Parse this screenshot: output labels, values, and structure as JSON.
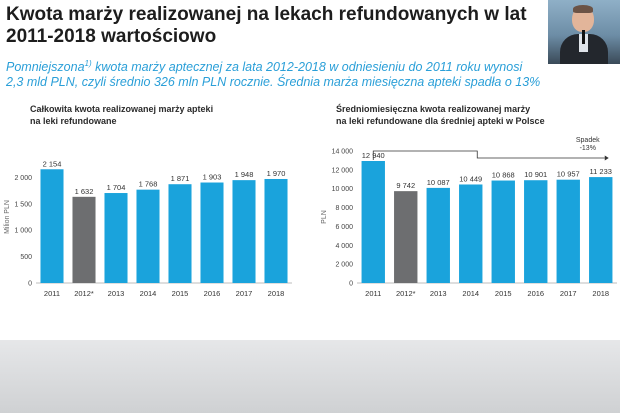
{
  "slide": {
    "title_line1": "Kwota marży realizowanej na lekach refundowanych w lat",
    "title_line2": "2011-2018 wartościowo",
    "subtitle_line1_a": "Pomniejszona",
    "subtitle_sup": "1)",
    "subtitle_line1_b": " kwota marży aptecznej za lata 2012-2018 w odniesieniu do 2011 roku wynosi",
    "subtitle_line2": "2,3 mld PLN, czyli średnio 326 mln PLN rocznie. Średnia marża miesięczna apteki spadła o 13%"
  },
  "colors": {
    "bar": "#1aa3dc",
    "bar_highlight": "#6d6e70",
    "subtitle": "#2a9fd8"
  },
  "chart_data": [
    {
      "type": "bar",
      "title_line1": "Całkowita kwota realizowanej marży apteki",
      "title_line2": "na leki refundowane",
      "ylabel": "Milion PLN",
      "ylim": [
        0,
        2500
      ],
      "yticks": [
        0,
        500,
        1000,
        1500,
        2000
      ],
      "ytick_labels": [
        "0",
        "500",
        "1 000",
        "1 500",
        "2 000"
      ],
      "categories": [
        "2011",
        "2012*",
        "2013",
        "2014",
        "2015",
        "2016",
        "2017",
        "2018"
      ],
      "values": [
        2154,
        1632,
        1704,
        1768,
        1871,
        1903,
        1948,
        1970
      ],
      "value_labels": [
        "2 154",
        "1 632",
        "1 704",
        "1 768",
        "1 871",
        "1 903",
        "1 948",
        "1 970"
      ],
      "highlight_index": 1,
      "grid": false
    },
    {
      "type": "bar",
      "title_line1": "Średniomiesięczna kwota realizowanej marży",
      "title_line2": "na leki refundowane dla średniej apteki w Polsce",
      "ylabel": "PLN",
      "ylim": [
        0,
        14000
      ],
      "yticks": [
        0,
        2000,
        4000,
        6000,
        8000,
        10000,
        12000,
        14000
      ],
      "ytick_labels": [
        "0",
        "2 000",
        "4 000",
        "6 000",
        "8 000",
        "10 000",
        "12 000",
        "14 000"
      ],
      "categories": [
        "2011",
        "2012*",
        "2013",
        "2014",
        "2015",
        "2016",
        "2017",
        "2018"
      ],
      "values": [
        12940,
        9742,
        10087,
        10449,
        10868,
        10901,
        10957,
        11233
      ],
      "value_labels": [
        "12 940",
        "9 742",
        "10 087",
        "10 449",
        "10 868",
        "10 901",
        "10 957",
        "11 233"
      ],
      "highlight_index": 1,
      "annotation_line1": "Spadek",
      "annotation_line2": "-13%",
      "grid": false
    }
  ]
}
